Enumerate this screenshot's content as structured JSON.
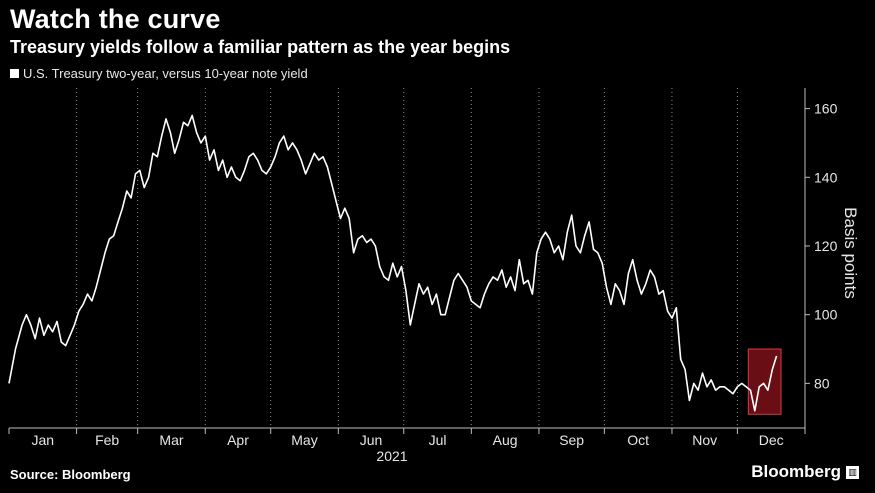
{
  "header": {
    "title": "Watch the curve",
    "subtitle": "Treasury yields follow a familiar pattern as the year begins"
  },
  "footer": {
    "source": "Source: Bloomberg",
    "brand": "Bloomberg"
  },
  "chart_data": {
    "type": "line",
    "series": [
      {
        "name": "U.S. Treasury two-year, versus 10-year note yield",
        "color": "#ffffff",
        "points": [
          [
            0,
            80
          ],
          [
            3,
            90
          ],
          [
            6,
            97
          ],
          [
            8,
            100
          ],
          [
            10,
            97
          ],
          [
            12,
            93
          ],
          [
            14,
            99
          ],
          [
            16,
            94
          ],
          [
            18,
            97
          ],
          [
            20,
            95
          ],
          [
            22,
            98
          ],
          [
            24,
            92
          ],
          [
            26,
            91
          ],
          [
            28,
            94
          ],
          [
            30,
            97
          ],
          [
            32,
            101
          ],
          [
            34,
            103
          ],
          [
            36,
            106
          ],
          [
            38,
            104
          ],
          [
            40,
            108
          ],
          [
            42,
            113
          ],
          [
            44,
            118
          ],
          [
            46,
            122
          ],
          [
            48,
            123
          ],
          [
            50,
            127
          ],
          [
            52,
            131
          ],
          [
            54,
            136
          ],
          [
            56,
            134
          ],
          [
            58,
            141
          ],
          [
            60,
            142
          ],
          [
            62,
            137
          ],
          [
            64,
            140
          ],
          [
            66,
            147
          ],
          [
            68,
            146
          ],
          [
            70,
            152
          ],
          [
            72,
            157
          ],
          [
            74,
            153
          ],
          [
            76,
            147
          ],
          [
            78,
            151
          ],
          [
            80,
            156
          ],
          [
            82,
            155
          ],
          [
            84,
            158
          ],
          [
            86,
            153
          ],
          [
            88,
            150
          ],
          [
            90,
            152
          ],
          [
            92,
            145
          ],
          [
            94,
            148
          ],
          [
            96,
            142
          ],
          [
            98,
            145
          ],
          [
            100,
            140
          ],
          [
            102,
            143
          ],
          [
            104,
            140
          ],
          [
            106,
            139
          ],
          [
            108,
            142
          ],
          [
            110,
            146
          ],
          [
            112,
            147
          ],
          [
            114,
            145
          ],
          [
            116,
            142
          ],
          [
            118,
            141
          ],
          [
            120,
            143
          ],
          [
            122,
            146
          ],
          [
            124,
            150
          ],
          [
            126,
            152
          ],
          [
            128,
            148
          ],
          [
            130,
            150
          ],
          [
            132,
            148
          ],
          [
            134,
            145
          ],
          [
            136,
            141
          ],
          [
            138,
            144
          ],
          [
            140,
            147
          ],
          [
            142,
            145
          ],
          [
            144,
            146
          ],
          [
            146,
            143
          ],
          [
            148,
            138
          ],
          [
            150,
            133
          ],
          [
            152,
            128
          ],
          [
            154,
            131
          ],
          [
            156,
            128
          ],
          [
            158,
            118
          ],
          [
            160,
            122
          ],
          [
            162,
            123
          ],
          [
            164,
            121
          ],
          [
            166,
            122
          ],
          [
            168,
            120
          ],
          [
            170,
            114
          ],
          [
            172,
            111
          ],
          [
            174,
            110
          ],
          [
            176,
            115
          ],
          [
            178,
            111
          ],
          [
            180,
            114
          ],
          [
            182,
            107
          ],
          [
            184,
            97
          ],
          [
            186,
            103
          ],
          [
            188,
            109
          ],
          [
            190,
            106
          ],
          [
            192,
            108
          ],
          [
            194,
            103
          ],
          [
            196,
            106
          ],
          [
            198,
            100
          ],
          [
            200,
            100
          ],
          [
            202,
            105
          ],
          [
            204,
            110
          ],
          [
            206,
            112
          ],
          [
            208,
            110
          ],
          [
            210,
            108
          ],
          [
            212,
            104
          ],
          [
            214,
            103
          ],
          [
            216,
            102
          ],
          [
            218,
            106
          ],
          [
            220,
            109
          ],
          [
            222,
            111
          ],
          [
            224,
            110
          ],
          [
            226,
            113
          ],
          [
            228,
            108
          ],
          [
            230,
            111
          ],
          [
            232,
            107
          ],
          [
            234,
            116
          ],
          [
            236,
            109
          ],
          [
            238,
            110
          ],
          [
            240,
            106
          ],
          [
            242,
            118
          ],
          [
            244,
            122
          ],
          [
            246,
            124
          ],
          [
            248,
            122
          ],
          [
            250,
            118
          ],
          [
            252,
            120
          ],
          [
            254,
            116
          ],
          [
            256,
            124
          ],
          [
            258,
            129
          ],
          [
            260,
            120
          ],
          [
            262,
            118
          ],
          [
            264,
            123
          ],
          [
            266,
            127
          ],
          [
            268,
            119
          ],
          [
            270,
            118
          ],
          [
            272,
            115
          ],
          [
            274,
            108
          ],
          [
            276,
            103
          ],
          [
            278,
            109
          ],
          [
            280,
            107
          ],
          [
            282,
            103
          ],
          [
            284,
            112
          ],
          [
            286,
            116
          ],
          [
            288,
            110
          ],
          [
            290,
            106
          ],
          [
            292,
            109
          ],
          [
            294,
            113
          ],
          [
            296,
            111
          ],
          [
            298,
            106
          ],
          [
            300,
            107
          ],
          [
            302,
            101
          ],
          [
            304,
            99
          ],
          [
            306,
            102
          ],
          [
            308,
            87
          ],
          [
            310,
            84
          ],
          [
            312,
            75
          ],
          [
            314,
            80
          ],
          [
            316,
            78
          ],
          [
            318,
            83
          ],
          [
            320,
            79
          ],
          [
            322,
            81
          ],
          [
            324,
            78
          ],
          [
            326,
            79
          ],
          [
            328,
            79
          ],
          [
            330,
            78
          ],
          [
            332,
            77
          ],
          [
            334,
            79
          ],
          [
            336,
            80
          ],
          [
            338,
            79
          ],
          [
            340,
            78
          ],
          [
            342,
            72
          ],
          [
            344,
            79
          ],
          [
            346,
            80
          ],
          [
            348,
            78
          ],
          [
            350,
            84
          ],
          [
            352,
            88
          ]
        ]
      }
    ],
    "x_axis": {
      "year_label": "2021",
      "months": [
        "Jan",
        "Feb",
        "Mar",
        "Apr",
        "May",
        "Jun",
        "Jul",
        "Aug",
        "Sep",
        "Oct",
        "Nov",
        "Dec"
      ]
    },
    "y_axis": {
      "label": "Basis points",
      "ticks": [
        80,
        100,
        120,
        140,
        160
      ],
      "ylim": [
        67,
        166
      ],
      "position": "right"
    },
    "highlight": {
      "x_start": 339,
      "x_end": 354,
      "y_start": 71,
      "y_end": 90,
      "color": "#7a1018",
      "border": "#d23c45"
    },
    "grid": {
      "vertical_dotted": true,
      "horizontal": false
    }
  }
}
